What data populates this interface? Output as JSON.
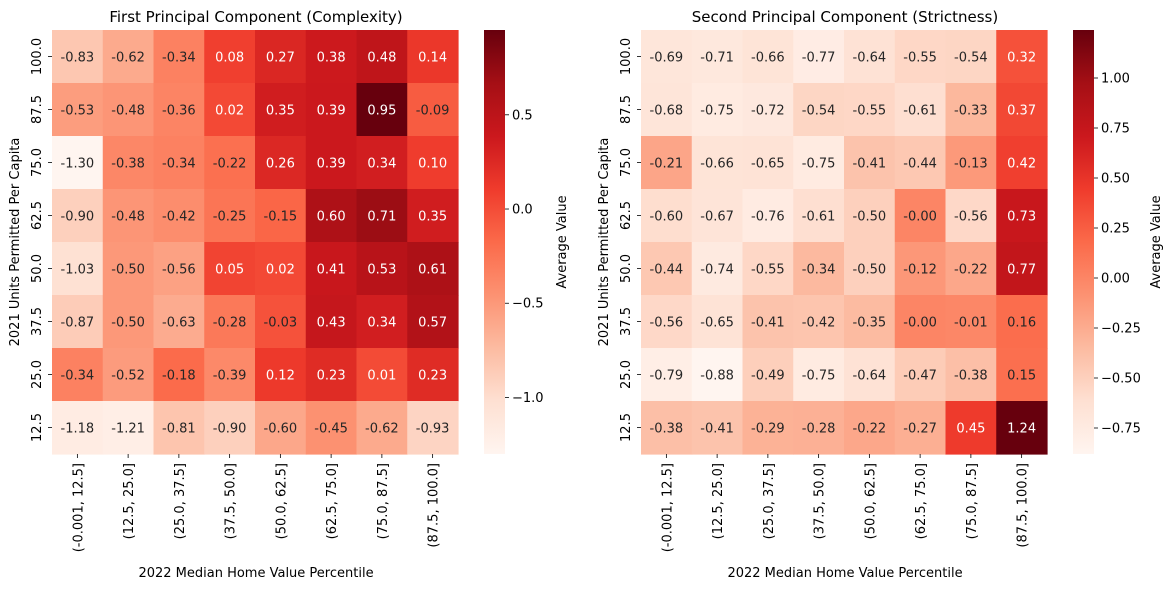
{
  "chart_data": [
    {
      "type": "heatmap",
      "title": "First Principal Component (Complexity)",
      "xlabel": "2022 Median Home Value Percentile",
      "ylabel": "2021 Units Permitted Per Capita",
      "x_categories": [
        "(-0.001, 12.5]",
        "(12.5, 25.0]",
        "(25.0, 37.5]",
        "(37.5, 50.0]",
        "(50.0, 62.5]",
        "(62.5, 75.0]",
        "(75.0, 87.5]",
        "(87.5, 100.0]"
      ],
      "y_categories": [
        "100.0",
        "87.5",
        "75.0",
        "62.5",
        "50.0",
        "37.5",
        "25.0",
        "12.5"
      ],
      "values": [
        [
          -0.83,
          -0.62,
          -0.34,
          0.08,
          0.27,
          0.38,
          0.48,
          0.14
        ],
        [
          -0.53,
          -0.48,
          -0.36,
          0.02,
          0.35,
          0.39,
          0.95,
          -0.09
        ],
        [
          -1.3,
          -0.38,
          -0.34,
          -0.22,
          0.26,
          0.39,
          0.34,
          0.1
        ],
        [
          -0.9,
          -0.48,
          -0.42,
          -0.25,
          -0.15,
          0.6,
          0.71,
          0.35
        ],
        [
          -1.03,
          -0.5,
          -0.56,
          0.05,
          0.02,
          0.41,
          0.53,
          0.61
        ],
        [
          -0.87,
          -0.5,
          -0.63,
          -0.28,
          -0.03,
          0.43,
          0.34,
          0.57
        ],
        [
          -0.34,
          -0.52,
          -0.18,
          -0.39,
          0.12,
          0.23,
          0.01,
          0.23
        ],
        [
          -1.18,
          -1.21,
          -0.81,
          -0.9,
          -0.6,
          -0.45,
          -0.62,
          -0.93
        ]
      ],
      "value_labels": [
        [
          "-0.83",
          "-0.62",
          "-0.34",
          "0.08",
          "0.27",
          "0.38",
          "0.48",
          "0.14"
        ],
        [
          "-0.53",
          "-0.48",
          "-0.36",
          "0.02",
          "0.35",
          "0.39",
          "0.95",
          "-0.09"
        ],
        [
          "-1.30",
          "-0.38",
          "-0.34",
          "-0.22",
          "0.26",
          "0.39",
          "0.34",
          "0.10"
        ],
        [
          "-0.90",
          "-0.48",
          "-0.42",
          "-0.25",
          "-0.15",
          "0.60",
          "0.71",
          "0.35"
        ],
        [
          "-1.03",
          "-0.50",
          "-0.56",
          "0.05",
          "0.02",
          "0.41",
          "0.53",
          "0.61"
        ],
        [
          "-0.87",
          "-0.50",
          "-0.63",
          "-0.28",
          "-0.03",
          "0.43",
          "0.34",
          "0.57"
        ],
        [
          "-0.34",
          "-0.52",
          "-0.18",
          "-0.39",
          "0.12",
          "0.23",
          "0.01",
          "0.23"
        ],
        [
          "-1.18",
          "-1.21",
          "-0.81",
          "-0.90",
          "-0.60",
          "-0.45",
          "-0.62",
          "-0.93"
        ]
      ],
      "colormap": "Reds",
      "color_range": [
        -1.3,
        0.95
      ],
      "colorbar": {
        "label": "Average Value",
        "ticks": [
          0.5,
          0.0,
          -0.5,
          -1.0
        ],
        "tick_labels": [
          "0.5",
          "0.0",
          "−0.5",
          "−1.0"
        ]
      },
      "grid": false
    },
    {
      "type": "heatmap",
      "title": "Second Principal Component (Strictness)",
      "xlabel": "2022 Median Home Value Percentile",
      "ylabel": "2021 Units Permitted Per Capita",
      "x_categories": [
        "(-0.001, 12.5]",
        "(12.5, 25.0]",
        "(25.0, 37.5]",
        "(37.5, 50.0]",
        "(50.0, 62.5]",
        "(62.5, 75.0]",
        "(75.0, 87.5]",
        "(87.5, 100.0]"
      ],
      "y_categories": [
        "100.0",
        "87.5",
        "75.0",
        "62.5",
        "50.0",
        "37.5",
        "25.0",
        "12.5"
      ],
      "values": [
        [
          -0.69,
          -0.71,
          -0.66,
          -0.77,
          -0.64,
          -0.55,
          -0.54,
          0.32
        ],
        [
          -0.68,
          -0.75,
          -0.72,
          -0.54,
          -0.55,
          -0.61,
          -0.33,
          0.37
        ],
        [
          -0.21,
          -0.66,
          -0.65,
          -0.75,
          -0.41,
          -0.44,
          -0.13,
          0.42
        ],
        [
          -0.6,
          -0.67,
          -0.76,
          -0.61,
          -0.5,
          -0.0,
          -0.56,
          0.73
        ],
        [
          -0.44,
          -0.74,
          -0.55,
          -0.34,
          -0.5,
          -0.12,
          -0.22,
          0.77
        ],
        [
          -0.56,
          -0.65,
          -0.41,
          -0.42,
          -0.35,
          -0.0,
          -0.01,
          0.16
        ],
        [
          -0.79,
          -0.88,
          -0.49,
          -0.75,
          -0.64,
          -0.47,
          -0.38,
          0.15
        ],
        [
          -0.38,
          -0.41,
          -0.29,
          -0.28,
          -0.22,
          -0.27,
          0.45,
          1.24
        ]
      ],
      "value_labels": [
        [
          "-0.69",
          "-0.71",
          "-0.66",
          "-0.77",
          "-0.64",
          "-0.55",
          "-0.54",
          "0.32"
        ],
        [
          "-0.68",
          "-0.75",
          "-0.72",
          "-0.54",
          "-0.55",
          "-0.61",
          "-0.33",
          "0.37"
        ],
        [
          "-0.21",
          "-0.66",
          "-0.65",
          "-0.75",
          "-0.41",
          "-0.44",
          "-0.13",
          "0.42"
        ],
        [
          "-0.60",
          "-0.67",
          "-0.76",
          "-0.61",
          "-0.50",
          "-0.00",
          "-0.56",
          "0.73"
        ],
        [
          "-0.44",
          "-0.74",
          "-0.55",
          "-0.34",
          "-0.50",
          "-0.12",
          "-0.22",
          "0.77"
        ],
        [
          "-0.56",
          "-0.65",
          "-0.41",
          "-0.42",
          "-0.35",
          "-0.00",
          "-0.01",
          "0.16"
        ],
        [
          "-0.79",
          "-0.88",
          "-0.49",
          "-0.75",
          "-0.64",
          "-0.47",
          "-0.38",
          "0.15"
        ],
        [
          "-0.38",
          "-0.41",
          "-0.29",
          "-0.28",
          "-0.22",
          "-0.27",
          "0.45",
          "1.24"
        ]
      ],
      "colormap": "Reds",
      "color_range": [
        -0.88,
        1.24
      ],
      "colorbar": {
        "label": "Average Value",
        "ticks": [
          1.0,
          0.75,
          0.5,
          0.25,
          0.0,
          -0.25,
          -0.5,
          -0.75
        ],
        "tick_labels": [
          "1.00",
          "0.75",
          "0.50",
          "0.25",
          "0.00",
          "−0.25",
          "−0.50",
          "−0.75"
        ]
      },
      "grid": false
    }
  ]
}
